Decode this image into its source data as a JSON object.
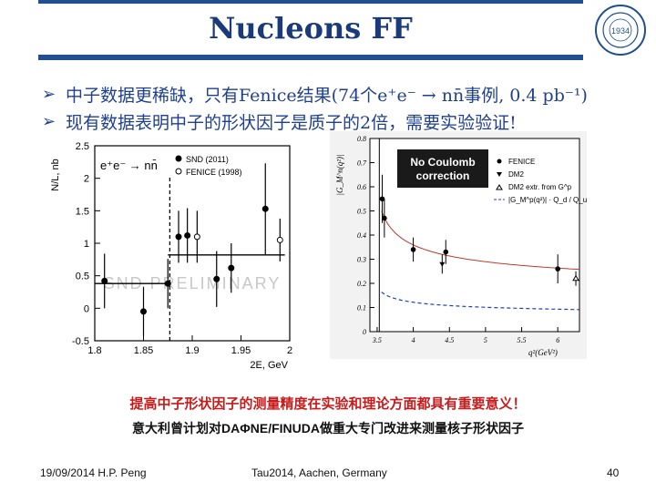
{
  "slide": {
    "title": "Nucleons FF",
    "logo_text": "1934",
    "bullets": [
      {
        "text": "中子数据更稀缺，只有Fenice结果(74个e⁺e⁻ → nn̄事例, 0.4 pb⁻¹)"
      },
      {
        "text": "现有数据表明中子的形状因子是质子的2倍，需要实验验证!"
      }
    ],
    "caption_red": "提高中子形状因子的测量精度在实验和理论方面都具有重要意义！",
    "caption_black": "意大利曾计划对DAΦNE/FINUDA做重大专门改进来测量核子形状因子",
    "footer": {
      "date_author": "19/09/2014  H.P.  Peng",
      "conference": "Tau2014,  Aachen,  Germany",
      "page": "40"
    }
  },
  "chart_data": [
    {
      "type": "scatter",
      "xlabel": "2E, GeV",
      "ylabel": "N/L, nb",
      "xlim": [
        1.8,
        2.0
      ],
      "ylim": [
        -0.5,
        2.5
      ],
      "x_ticks": [
        "1.8",
        "1.85",
        "1.9",
        "1.95",
        "2"
      ],
      "y_ticks": [
        "-0.5",
        "0",
        "0.5",
        "1",
        "1.5",
        "2",
        "2.5"
      ],
      "process_label": "e⁺e⁻ → nn̄",
      "watermark": "SND PRELIMINARY",
      "legend_position": "top-right",
      "series": [
        {
          "name": "SND (2011)",
          "marker": "filled-circle",
          "x": [
            1.81,
            1.85,
            1.875,
            1.886,
            1.895,
            1.925,
            1.94,
            1.975
          ],
          "y": [
            0.42,
            -0.05,
            0.38,
            1.1,
            1.12,
            0.45,
            0.62,
            1.53
          ],
          "err": [
            0.42,
            0.38,
            0.38,
            0.4,
            0.42,
            0.43,
            0.38,
            0.7
          ]
        },
        {
          "name": "FENICE (1998)",
          "marker": "open-circle",
          "x": [
            1.905,
            1.99
          ],
          "y": [
            1.1,
            1.05
          ],
          "err": [
            0.4,
            0.33
          ]
        }
      ],
      "steps": [
        {
          "x0": 1.8,
          "x1": 1.875,
          "y": 0.38
        },
        {
          "x0": 1.875,
          "x1": 1.995,
          "y": 0.82
        }
      ],
      "threshold_dashed_x": 1.877
    },
    {
      "type": "scatter",
      "xlabel": "q²(GeV²)",
      "ylabel": "|G_M^n(q²)|",
      "xlim": [
        3.4,
        6.3
      ],
      "ylim": [
        0,
        0.8
      ],
      "x_ticks": [
        "3.5",
        "4",
        "4.5",
        "5",
        "5.5",
        "6"
      ],
      "y_ticks": [
        "0",
        "0.1",
        "0.2",
        "0.3",
        "0.4",
        "0.5",
        "0.6",
        "0.7",
        "0.8"
      ],
      "annotation": [
        "No Coulomb",
        "correction"
      ],
      "legend_position": "top-right",
      "series": [
        {
          "name": "FENICE",
          "marker": "filled-circle",
          "x": [
            3.57,
            3.6,
            4.0,
            4.45,
            6.0
          ],
          "y": [
            0.55,
            0.47,
            0.34,
            0.33,
            0.26
          ],
          "err": [
            0.1,
            0.08,
            0.05,
            0.05,
            0.06
          ]
        },
        {
          "name": "DM2",
          "marker": "filled-triangle",
          "x": [
            4.4
          ],
          "y": [
            0.28
          ],
          "err": [
            0.04
          ]
        },
        {
          "name": "DM2 extr. from G^p",
          "marker": "open-triangle",
          "x": [
            6.25
          ],
          "y": [
            0.22
          ],
          "err": [
            0.03
          ]
        },
        {
          "name": "|G_M^p(q²)| · Q_d / Q_u",
          "style": "dashed-blue-curve"
        }
      ]
    }
  ]
}
